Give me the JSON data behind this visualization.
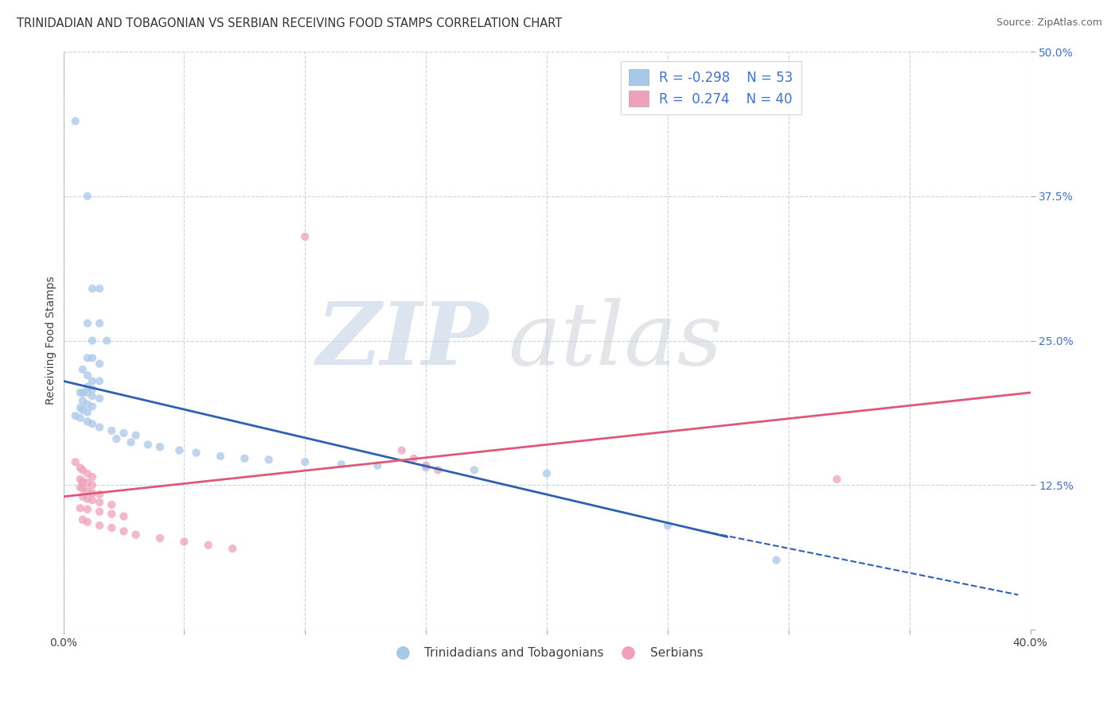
{
  "title": "TRINIDADIAN AND TOBAGONIAN VS SERBIAN RECEIVING FOOD STAMPS CORRELATION CHART",
  "source": "Source: ZipAtlas.com",
  "ylabel": "Receiving Food Stamps",
  "xlim": [
    0.0,
    0.4
  ],
  "ylim": [
    0.0,
    0.5
  ],
  "blue_color": "#a8c8e8",
  "pink_color": "#f0a0b8",
  "blue_line_color": "#3060b0",
  "pink_line_color": "#e05878",
  "label1": "Trinidadians and Tobagonians",
  "label2": "Serbians",
  "watermark_zip": "ZIP",
  "watermark_atlas": "atlas",
  "background_color": "#ffffff",
  "grid_color": "#c8d4e4",
  "blue_scatter": [
    [
      0.005,
      0.44
    ],
    [
      0.01,
      0.375
    ],
    [
      0.012,
      0.295
    ],
    [
      0.015,
      0.295
    ],
    [
      0.01,
      0.265
    ],
    [
      0.015,
      0.265
    ],
    [
      0.012,
      0.25
    ],
    [
      0.018,
      0.25
    ],
    [
      0.01,
      0.235
    ],
    [
      0.012,
      0.235
    ],
    [
      0.015,
      0.23
    ],
    [
      0.008,
      0.225
    ],
    [
      0.01,
      0.22
    ],
    [
      0.012,
      0.215
    ],
    [
      0.015,
      0.215
    ],
    [
      0.01,
      0.21
    ],
    [
      0.012,
      0.208
    ],
    [
      0.007,
      0.205
    ],
    [
      0.008,
      0.205
    ],
    [
      0.01,
      0.205
    ],
    [
      0.012,
      0.202
    ],
    [
      0.015,
      0.2
    ],
    [
      0.008,
      0.198
    ],
    [
      0.01,
      0.195
    ],
    [
      0.012,
      0.193
    ],
    [
      0.007,
      0.192
    ],
    [
      0.008,
      0.19
    ],
    [
      0.01,
      0.188
    ],
    [
      0.005,
      0.185
    ],
    [
      0.007,
      0.183
    ],
    [
      0.01,
      0.18
    ],
    [
      0.012,
      0.178
    ],
    [
      0.015,
      0.175
    ],
    [
      0.02,
      0.172
    ],
    [
      0.025,
      0.17
    ],
    [
      0.03,
      0.168
    ],
    [
      0.022,
      0.165
    ],
    [
      0.028,
      0.162
    ],
    [
      0.035,
      0.16
    ],
    [
      0.04,
      0.158
    ],
    [
      0.048,
      0.155
    ],
    [
      0.055,
      0.153
    ],
    [
      0.065,
      0.15
    ],
    [
      0.075,
      0.148
    ],
    [
      0.085,
      0.147
    ],
    [
      0.1,
      0.145
    ],
    [
      0.115,
      0.143
    ],
    [
      0.13,
      0.142
    ],
    [
      0.15,
      0.14
    ],
    [
      0.17,
      0.138
    ],
    [
      0.2,
      0.135
    ],
    [
      0.25,
      0.09
    ],
    [
      0.295,
      0.06
    ]
  ],
  "pink_scatter": [
    [
      0.005,
      0.145
    ],
    [
      0.007,
      0.14
    ],
    [
      0.008,
      0.138
    ],
    [
      0.01,
      0.135
    ],
    [
      0.012,
      0.132
    ],
    [
      0.007,
      0.13
    ],
    [
      0.008,
      0.128
    ],
    [
      0.01,
      0.127
    ],
    [
      0.012,
      0.125
    ],
    [
      0.007,
      0.123
    ],
    [
      0.008,
      0.122
    ],
    [
      0.01,
      0.12
    ],
    [
      0.012,
      0.118
    ],
    [
      0.015,
      0.117
    ],
    [
      0.008,
      0.115
    ],
    [
      0.01,
      0.113
    ],
    [
      0.012,
      0.112
    ],
    [
      0.015,
      0.11
    ],
    [
      0.02,
      0.108
    ],
    [
      0.007,
      0.105
    ],
    [
      0.01,
      0.104
    ],
    [
      0.015,
      0.102
    ],
    [
      0.02,
      0.1
    ],
    [
      0.025,
      0.098
    ],
    [
      0.008,
      0.095
    ],
    [
      0.01,
      0.093
    ],
    [
      0.015,
      0.09
    ],
    [
      0.02,
      0.088
    ],
    [
      0.025,
      0.085
    ],
    [
      0.03,
      0.082
    ],
    [
      0.04,
      0.079
    ],
    [
      0.05,
      0.076
    ],
    [
      0.06,
      0.073
    ],
    [
      0.07,
      0.07
    ],
    [
      0.14,
      0.155
    ],
    [
      0.145,
      0.148
    ],
    [
      0.15,
      0.142
    ],
    [
      0.155,
      0.138
    ],
    [
      0.1,
      0.34
    ],
    [
      0.32,
      0.13
    ]
  ],
  "R1": -0.298,
  "N1": 53,
  "R2": 0.274,
  "N2": 40,
  "title_fontsize": 10.5,
  "axis_fontsize": 10,
  "tick_fontsize": 10
}
